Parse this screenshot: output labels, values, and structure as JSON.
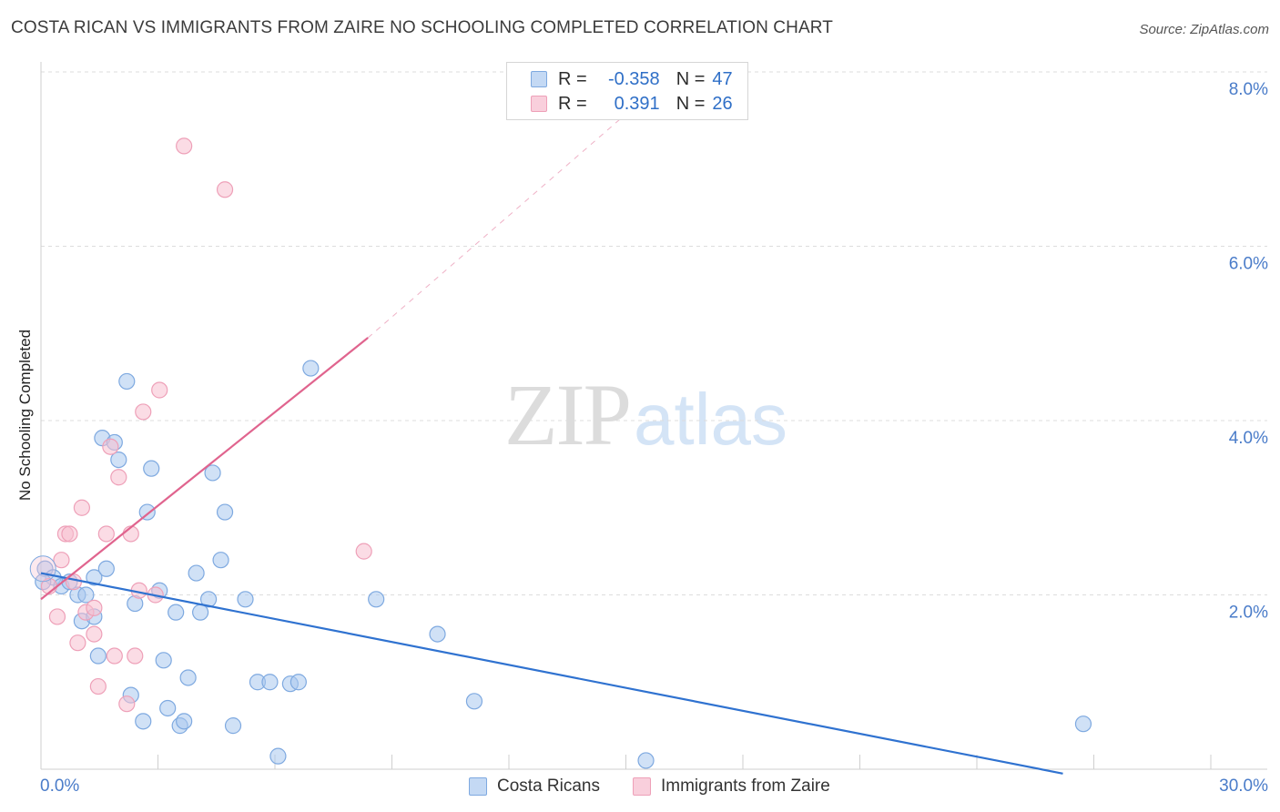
{
  "title": "COSTA RICAN VS IMMIGRANTS FROM ZAIRE NO SCHOOLING COMPLETED CORRELATION CHART",
  "source": "Source: ZipAtlas.com",
  "watermark": {
    "zip": "ZIP",
    "atlas": "atlas"
  },
  "legend": {
    "rows": [
      {
        "r_label": "R =",
        "r_value": "-0.358",
        "n_label": "N =",
        "n_value": "47"
      },
      {
        "r_label": "R =",
        "r_value": "0.391",
        "n_label": "N =",
        "n_value": "26"
      }
    ]
  },
  "bottom_legend": [
    "Costa Ricans",
    "Immigrants from Zaire"
  ],
  "colors": {
    "blue_fill": "#a9c8ef",
    "blue_stroke": "#7ea9e0",
    "blue_line": "#2f72d0",
    "pink_fill": "#f7bfd0",
    "pink_stroke": "#eea0b8",
    "pink_line": "#e0648e",
    "grid": "#dddddd",
    "axis_label": "#4a7cc9"
  },
  "chart_data": {
    "type": "scatter",
    "title": "COSTA RICAN VS IMMIGRANTS FROM ZAIRE NO SCHOOLING COMPLETED CORRELATION CHART",
    "xlabel": "",
    "ylabel": "No Schooling Completed",
    "xlim": [
      0,
      30
    ],
    "ylim": [
      0,
      8.0
    ],
    "x_tick_labels": [
      "0.0%",
      "30.0%"
    ],
    "y_tick_values": [
      2.0,
      4.0,
      6.0,
      8.0
    ],
    "y_tick_labels": [
      "2.0%",
      "4.0%",
      "6.0%",
      "8.0%"
    ],
    "grid": true,
    "series": [
      {
        "name": "Costa Ricans",
        "color": "#a9c8ef",
        "r": -0.358,
        "n": 47,
        "points": [
          [
            0.1,
            2.3
          ],
          [
            0.3,
            2.2
          ],
          [
            0.5,
            2.1
          ],
          [
            0.7,
            2.15
          ],
          [
            0.9,
            2.0
          ],
          [
            1.0,
            1.7
          ],
          [
            1.1,
            2.0
          ],
          [
            1.3,
            1.75
          ],
          [
            1.3,
            2.2
          ],
          [
            1.4,
            1.3
          ],
          [
            1.5,
            3.8
          ],
          [
            1.6,
            2.3
          ],
          [
            1.8,
            3.75
          ],
          [
            1.9,
            3.55
          ],
          [
            2.1,
            4.45
          ],
          [
            2.2,
            0.85
          ],
          [
            2.3,
            1.9
          ],
          [
            2.5,
            0.55
          ],
          [
            2.6,
            2.95
          ],
          [
            2.7,
            3.45
          ],
          [
            2.9,
            2.05
          ],
          [
            3.0,
            1.25
          ],
          [
            3.1,
            0.7
          ],
          [
            3.3,
            1.8
          ],
          [
            3.4,
            0.5
          ],
          [
            3.5,
            0.55
          ],
          [
            3.6,
            1.05
          ],
          [
            3.8,
            2.25
          ],
          [
            3.9,
            1.8
          ],
          [
            4.1,
            1.95
          ],
          [
            4.2,
            3.4
          ],
          [
            4.4,
            2.4
          ],
          [
            4.5,
            2.95
          ],
          [
            4.7,
            0.5
          ],
          [
            5.0,
            1.95
          ],
          [
            5.3,
            1.0
          ],
          [
            5.6,
            1.0
          ],
          [
            5.8,
            0.15
          ],
          [
            6.1,
            0.98
          ],
          [
            6.3,
            1.0
          ],
          [
            6.6,
            4.6
          ],
          [
            8.2,
            1.95
          ],
          [
            9.7,
            1.55
          ],
          [
            10.6,
            0.78
          ],
          [
            14.8,
            0.1
          ],
          [
            25.5,
            0.52
          ],
          [
            0.05,
            2.15
          ]
        ]
      },
      {
        "name": "Immigrants from Zaire",
        "color": "#f7bfd0",
        "r": 0.391,
        "n": 26,
        "points": [
          [
            0.2,
            2.1
          ],
          [
            0.4,
            1.75
          ],
          [
            0.5,
            2.4
          ],
          [
            0.6,
            2.7
          ],
          [
            0.7,
            2.7
          ],
          [
            0.8,
            2.15
          ],
          [
            0.9,
            1.45
          ],
          [
            1.0,
            3.0
          ],
          [
            1.1,
            1.8
          ],
          [
            1.3,
            1.85
          ],
          [
            1.3,
            1.55
          ],
          [
            1.4,
            0.95
          ],
          [
            1.6,
            2.7
          ],
          [
            1.7,
            3.7
          ],
          [
            1.8,
            1.3
          ],
          [
            1.9,
            3.35
          ],
          [
            2.1,
            0.75
          ],
          [
            2.2,
            2.7
          ],
          [
            2.3,
            1.3
          ],
          [
            2.4,
            2.05
          ],
          [
            2.5,
            4.1
          ],
          [
            2.8,
            2.0
          ],
          [
            2.9,
            4.35
          ],
          [
            3.5,
            7.15
          ],
          [
            4.5,
            6.65
          ],
          [
            7.9,
            2.5
          ]
        ]
      }
    ],
    "trendlines": [
      {
        "series": "Costa Ricans",
        "x": [
          0,
          25.0
        ],
        "y": [
          2.25,
          -0.05
        ]
      },
      {
        "series": "Immigrants from Zaire",
        "x": [
          0,
          8.0
        ],
        "y": [
          1.95,
          4.95
        ],
        "dashed_extension_to": [
          15.5,
          8.0
        ]
      }
    ]
  }
}
